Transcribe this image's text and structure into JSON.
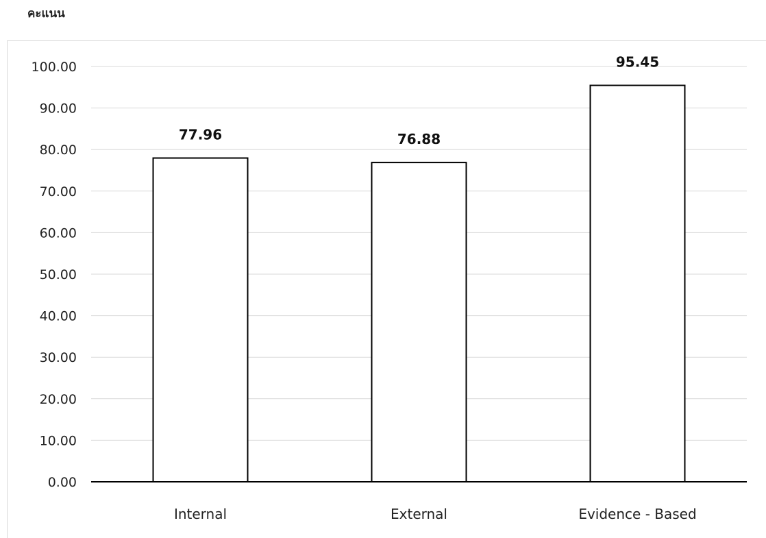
{
  "chart_data": {
    "type": "bar",
    "title": "",
    "ylabel": "คะแนน",
    "xlabel": "",
    "categories": [
      "Internal",
      "External",
      "Evidence - Based"
    ],
    "values": [
      77.96,
      76.88,
      95.45
    ],
    "data_labels": [
      "77.96",
      "76.88",
      "95.45"
    ],
    "ylim": [
      0,
      100
    ],
    "ytick_step": 10,
    "ytick_labels": [
      "0.00",
      "10.00",
      "20.00",
      "30.00",
      "40.00",
      "50.00",
      "60.00",
      "70.00",
      "80.00",
      "90.00",
      "100.00"
    ],
    "grid": true,
    "legend": "none",
    "bar_fill": "#ffffff",
    "bar_stroke": "#000000",
    "gridline_color": "#d9d9d9",
    "axis_color": "#000000"
  }
}
